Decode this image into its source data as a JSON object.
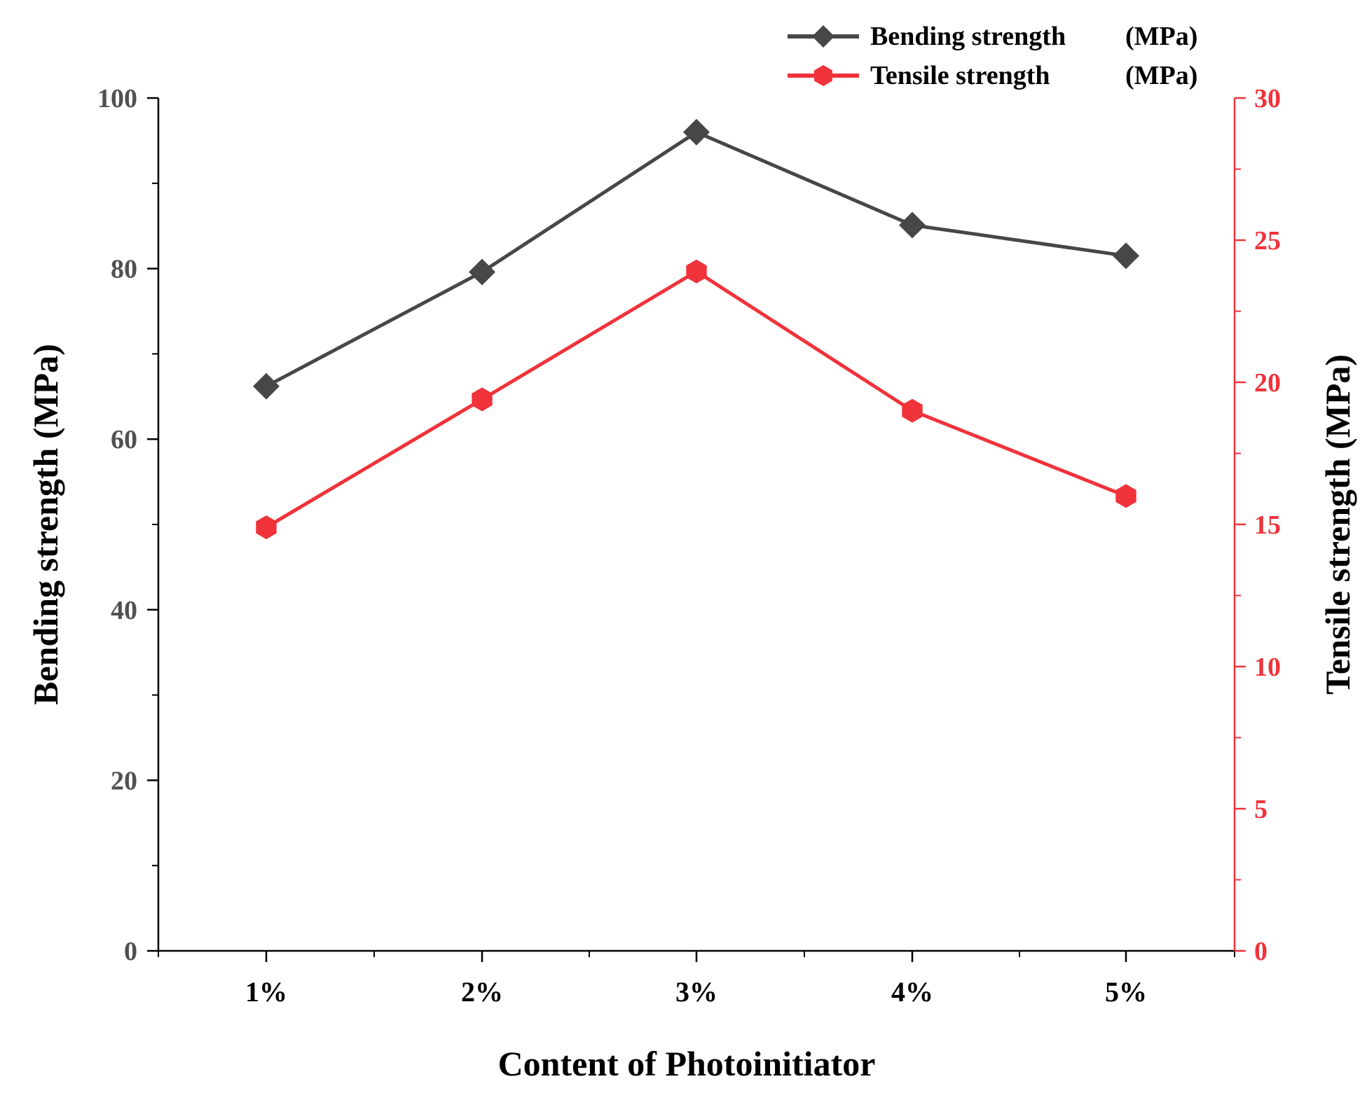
{
  "chart_data": {
    "type": "line",
    "title": "",
    "xlabel": "Content of Photoinitiator",
    "categories": [
      "1%",
      "2%",
      "3%",
      "4%",
      "5%"
    ],
    "y_left": {
      "label": "Bending strength (MPa)",
      "range": [
        0,
        100
      ],
      "ticks": [
        0,
        20,
        40,
        60,
        80,
        100
      ],
      "color": "#505050"
    },
    "y_right": {
      "label": "Tensile strength (MPa)",
      "range": [
        0,
        30
      ],
      "ticks": [
        0,
        5,
        10,
        15,
        20,
        25,
        30
      ],
      "color": "#f0323a"
    },
    "series": [
      {
        "name": "Bending strength",
        "unit": "(MPa)",
        "axis": "left",
        "marker": "diamond",
        "color": "#474747",
        "values": [
          66.2,
          79.6,
          96.0,
          85.1,
          81.5
        ]
      },
      {
        "name": "Tensile strength",
        "unit": "(MPa)",
        "axis": "right",
        "marker": "hexagon",
        "color": "#f0323a",
        "values": [
          14.9,
          19.4,
          23.9,
          19.0,
          16.0
        ]
      }
    ],
    "legend_position": "top-right"
  }
}
